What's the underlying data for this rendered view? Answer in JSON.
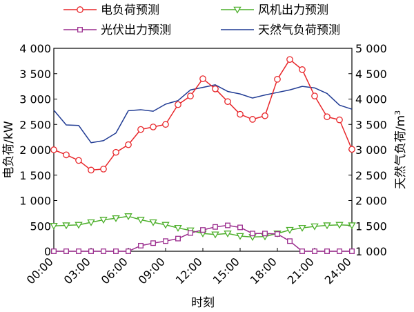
{
  "chart_data": {
    "type": "line",
    "xlabel": "时刻",
    "ylabel_left": "电负荷/kW",
    "ylabel_right_main": "天然气负荷/m",
    "ylabel_right_sup": "3",
    "x_tick_labels": [
      "00:00",
      "03:00",
      "06:00",
      "09:00",
      "12:00",
      "15:00",
      "18:00",
      "21:00",
      "24:00"
    ],
    "y_left_ticks": [
      "0",
      "500",
      "1 000",
      "1 500",
      "2 000",
      "2 500",
      "3 000",
      "3 500",
      "4 000"
    ],
    "y_right_ticks": [
      "1 000",
      "1 500",
      "2 000",
      "2 500",
      "3 000",
      "3 500",
      "4 000",
      "4 500",
      "5 000"
    ],
    "x_range": [
      0,
      24
    ],
    "ylim_left": [
      0,
      4000
    ],
    "ylim_right": [
      1000,
      5000
    ],
    "grid": false,
    "legend_position": "top",
    "x": [
      0,
      1,
      2,
      3,
      4,
      5,
      6,
      7,
      8,
      9,
      10,
      11,
      12,
      13,
      14,
      15,
      16,
      17,
      18,
      19,
      20,
      21,
      22,
      23,
      24
    ],
    "series": [
      {
        "name": "电负荷预测",
        "axis": "left",
        "color": "#e8262a",
        "marker": "circle",
        "values": [
          2000,
          1900,
          1790,
          1600,
          1620,
          1950,
          2100,
          2400,
          2450,
          2500,
          2890,
          3060,
          3400,
          3200,
          2950,
          2700,
          2600,
          2670,
          3390,
          3780,
          3580,
          3060,
          2650,
          2590,
          2010
        ]
      },
      {
        "name": "风机出力预测",
        "axis": "left",
        "color": "#4caf2a",
        "marker": "triangle-down",
        "values": [
          500,
          510,
          520,
          570,
          620,
          650,
          690,
          620,
          570,
          520,
          460,
          410,
          350,
          330,
          350,
          300,
          280,
          290,
          350,
          420,
          460,
          490,
          510,
          520,
          510
        ]
      },
      {
        "name": "光伏出力预测",
        "axis": "left",
        "color": "#9b2d8e",
        "marker": "square",
        "values": [
          0,
          0,
          0,
          0,
          0,
          0,
          0,
          110,
          160,
          200,
          250,
          360,
          420,
          480,
          510,
          470,
          350,
          350,
          340,
          200,
          0,
          0,
          0,
          0,
          0
        ]
      },
      {
        "name": "天然气负荷预测",
        "axis": "right",
        "color": "#1f3a93",
        "marker": "none",
        "values": [
          3780,
          3490,
          3480,
          3140,
          3180,
          3330,
          3770,
          3790,
          3760,
          3900,
          3970,
          4180,
          4230,
          4280,
          4150,
          4100,
          4020,
          4080,
          4130,
          4180,
          4250,
          4220,
          4110,
          3880,
          3800
        ]
      }
    ]
  }
}
